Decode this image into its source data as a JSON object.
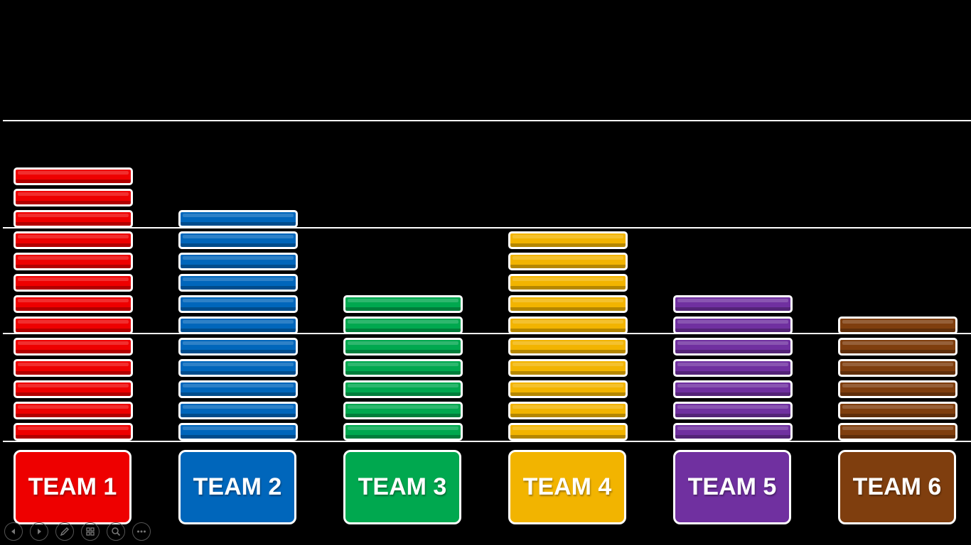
{
  "chart_data": {
    "type": "bar",
    "categories": [
      "TEAM 1",
      "TEAM 2",
      "TEAM 3",
      "TEAM 4",
      "TEAM 5",
      "TEAM 6"
    ],
    "values": [
      13,
      11,
      7,
      10,
      7,
      6
    ],
    "colors": [
      "#ee0000",
      "#0066bb",
      "#00a84f",
      "#f2b400",
      "#7030a0",
      "#7f3e0e"
    ],
    "grid": true
  },
  "teams": [
    {
      "label": "TEAM 1",
      "color": "#ee0000"
    },
    {
      "label": "TEAM 2",
      "color": "#0066bb"
    },
    {
      "label": "TEAM 3",
      "color": "#00a84f"
    },
    {
      "label": "TEAM 4",
      "color": "#f2b400"
    },
    {
      "label": "TEAM 5",
      "color": "#7030a0"
    },
    {
      "label": "TEAM 6",
      "color": "#7f3e0e"
    }
  ],
  "controls": [
    {
      "icon": "previous-slide-icon"
    },
    {
      "icon": "next-slide-icon"
    },
    {
      "icon": "pen-icon"
    },
    {
      "icon": "see-all-slides-icon"
    },
    {
      "icon": "zoom-icon"
    },
    {
      "icon": "more-options-icon"
    }
  ]
}
